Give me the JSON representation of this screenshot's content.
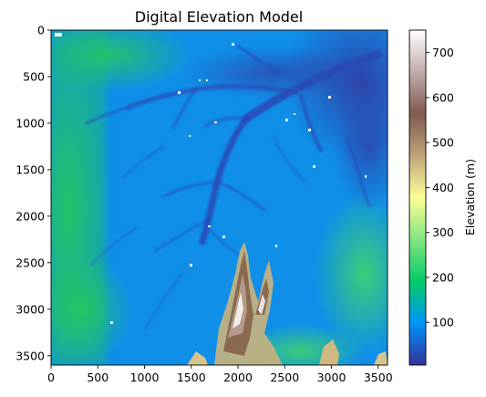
{
  "chart_data": {
    "type": "heatmap",
    "title": "Digital Elevation Model",
    "xlabel": "",
    "ylabel": "",
    "xlim": [
      0,
      3600
    ],
    "ylim": [
      3600,
      0
    ],
    "x_ticks": [
      "0",
      "500",
      "1000",
      "1500",
      "2000",
      "2500",
      "3000",
      "3500"
    ],
    "x_tick_values": [
      0,
      500,
      1000,
      1500,
      2000,
      2500,
      3000,
      3500
    ],
    "y_ticks": [
      "0",
      "500",
      "1000",
      "1500",
      "2000",
      "2500",
      "3000",
      "3500"
    ],
    "y_tick_values": [
      0,
      500,
      1000,
      1500,
      2000,
      2500,
      3000,
      3500
    ],
    "colorbar": {
      "label": "Elevation (m)",
      "range": [
        5,
        750
      ],
      "ticks": [
        "100",
        "200",
        "300",
        "400",
        "500",
        "600",
        "700"
      ],
      "tick_values": [
        100,
        200,
        300,
        400,
        500,
        600,
        700
      ],
      "colormap": "terrain",
      "colors": [
        "#333399",
        "#0094fa",
        "#02cc66",
        "#81e57f",
        "#fefe98",
        "#bfa479",
        "#81594f",
        "#c0adab",
        "#ffffff"
      ]
    },
    "grid": false,
    "features": [
      {
        "kind": "lowland-valley",
        "description_units": "elevation ~20-80 m in north-east corner and along river network"
      },
      {
        "kind": "ridge",
        "elevation_peak": 750,
        "x_range": [
          1700,
          2400
        ],
        "y_range": [
          2300,
          3600
        ]
      }
    ]
  }
}
